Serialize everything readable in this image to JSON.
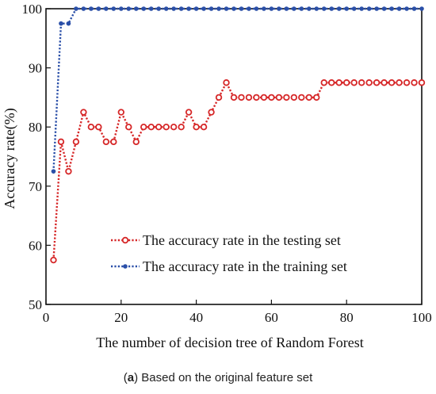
{
  "chart_data": {
    "type": "line",
    "title": "",
    "xlabel": "The number of decision tree of Random Forest",
    "ylabel": "Accuracy rate(%)",
    "xlim": [
      0,
      100
    ],
    "ylim": [
      50,
      100
    ],
    "xticks": [
      0,
      20,
      40,
      60,
      80,
      100
    ],
    "yticks": [
      50,
      60,
      70,
      80,
      90,
      100
    ],
    "grid": false,
    "legend_position": "bottom-right",
    "series": [
      {
        "name": "The accuracy rate in the testing set",
        "color": "#d62728",
        "marker": "open-circle",
        "x": [
          2,
          4,
          6,
          8,
          10,
          12,
          14,
          16,
          18,
          20,
          22,
          24,
          26,
          28,
          30,
          32,
          34,
          36,
          38,
          40,
          42,
          44,
          46,
          48,
          50,
          52,
          54,
          56,
          58,
          60,
          62,
          64,
          66,
          68,
          70,
          72,
          74,
          76,
          78,
          80,
          82,
          84,
          86,
          88,
          90,
          92,
          94,
          96,
          98,
          100
        ],
        "y": [
          57.5,
          77.5,
          72.5,
          77.5,
          82.5,
          80,
          80,
          77.5,
          77.5,
          82.5,
          80,
          77.5,
          80,
          80,
          80,
          80,
          80,
          80,
          82.5,
          80,
          80,
          82.5,
          85,
          87.5,
          85,
          85,
          85,
          85,
          85,
          85,
          85,
          85,
          85,
          85,
          85,
          85,
          87.5,
          87.5,
          87.5,
          87.5,
          87.5,
          87.5,
          87.5,
          87.5,
          87.5,
          87.5,
          87.5,
          87.5,
          87.5,
          87.5
        ]
      },
      {
        "name": "The accuracy rate in the training set",
        "color": "#2a4fa8",
        "marker": "filled-circle",
        "x": [
          2,
          4,
          6,
          8,
          10,
          12,
          14,
          16,
          18,
          20,
          22,
          24,
          26,
          28,
          30,
          32,
          34,
          36,
          38,
          40,
          42,
          44,
          46,
          48,
          50,
          52,
          54,
          56,
          58,
          60,
          62,
          64,
          66,
          68,
          70,
          72,
          74,
          76,
          78,
          80,
          82,
          84,
          86,
          88,
          90,
          92,
          94,
          96,
          98,
          100
        ],
        "y": [
          72.5,
          97.5,
          97.5,
          100,
          100,
          100,
          100,
          100,
          100,
          100,
          100,
          100,
          100,
          100,
          100,
          100,
          100,
          100,
          100,
          100,
          100,
          100,
          100,
          100,
          100,
          100,
          100,
          100,
          100,
          100,
          100,
          100,
          100,
          100,
          100,
          100,
          100,
          100,
          100,
          100,
          100,
          100,
          100,
          100,
          100,
          100,
          100,
          100,
          100,
          100
        ]
      }
    ]
  },
  "caption": {
    "label": "a",
    "text": " Based on the original feature set"
  }
}
